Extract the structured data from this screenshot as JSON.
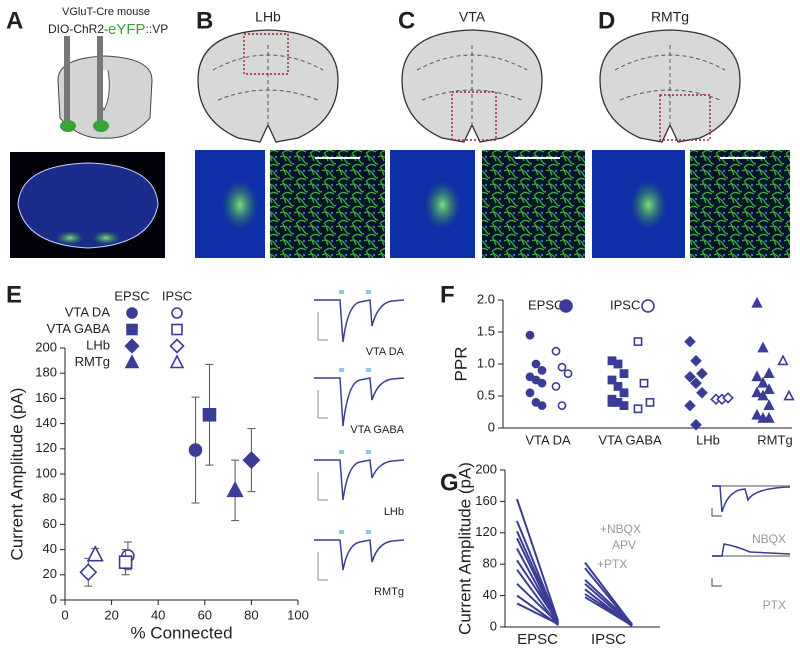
{
  "panel_labels": [
    "A",
    "B",
    "C",
    "D",
    "E",
    "F",
    "G"
  ],
  "panel_a": {
    "mouse": "VGluT-Cre mouse",
    "virus_prefix": "DIO-ChR2-",
    "virus_reporter": "eYFP",
    "virus_suffix": "::VP"
  },
  "atlas_regions": [
    "LHb",
    "VTA",
    "RMTg"
  ],
  "chart_data": [
    {
      "type": "scatter",
      "x_label": "% Connected",
      "y_label": "Current Amplitude (pA)",
      "categories": [
        "VTA DA",
        "VTA GABA",
        "LHb",
        "RMTg"
      ],
      "markers": [
        "circle",
        "square",
        "diamond",
        "triangle"
      ],
      "series": [
        {
          "name": "EPSC",
          "filled": true,
          "color": "#3b3c96",
          "x": [
            56,
            62,
            80,
            73
          ],
          "values": [
            119,
            147,
            111,
            87
          ],
          "errors": [
            42,
            40,
            25,
            24
          ]
        },
        {
          "name": "IPSC",
          "filled": false,
          "color": "#3b3c96",
          "x": [
            27,
            26,
            10,
            13
          ],
          "values": [
            35,
            30,
            22,
            36
          ],
          "errors": [
            11,
            10,
            11,
            5
          ]
        }
      ],
      "xlim": [
        0,
        100
      ],
      "xticks": [
        0,
        20,
        40,
        60,
        80,
        100
      ],
      "ylim": [
        0,
        200
      ],
      "yticks": [
        0,
        20,
        40,
        60,
        80,
        100,
        120,
        140,
        160,
        180,
        200
      ]
    },
    {
      "type": "strip",
      "y_label": "PPR",
      "categories": [
        "VTA DA",
        "VTA GABA",
        "LHb",
        "RMTg"
      ],
      "markers": [
        "circle",
        "square",
        "diamond",
        "triangle"
      ],
      "series": [
        {
          "name": "EPSC",
          "filled": true,
          "color": "#3b3c96",
          "values": [
            [
              1.45,
              1.0,
              0.9,
              0.8,
              0.75,
              0.7,
              0.55,
              0.4,
              0.35
            ],
            [
              1.05,
              1.0,
              0.85,
              0.75,
              0.65,
              0.55,
              0.45,
              0.4,
              0.35,
              0.4
            ],
            [
              1.35,
              1.05,
              0.85,
              0.8,
              0.7,
              0.55,
              0.35,
              0.05
            ],
            [
              1.95,
              1.25,
              0.85,
              0.8,
              0.7,
              0.6,
              0.55,
              0.5,
              0.35,
              0.2,
              0.15,
              0.15
            ]
          ]
        },
        {
          "name": "IPSC",
          "filled": false,
          "color": "#3b3c96",
          "values": [
            [
              1.2,
              0.95,
              0.85,
              0.65,
              0.35
            ],
            [
              1.35,
              0.7,
              0.4,
              0.3
            ],
            [
              0.45,
              0.45,
              0.47
            ],
            [
              1.05,
              0.5
            ]
          ]
        }
      ],
      "ylim": [
        0,
        2
      ],
      "yticks": [
        0,
        0.5,
        {
          "value": 1,
          "label": "1.0"
        },
        1.5,
        {
          "value": 2,
          "label": "2.0"
        }
      ]
    },
    {
      "type": "paired",
      "y_label": "Current Amplitude (pA)",
      "color": "#3b3c96",
      "groups": [
        {
          "name": "EPSC",
          "before": [
            163,
            135,
            122,
            113,
            100,
            85,
            73,
            55,
            40,
            30
          ],
          "after": [
            8,
            6,
            5,
            4,
            3,
            6,
            2,
            5,
            3,
            4
          ],
          "annotation": [
            "+NBQX",
            "APV"
          ]
        },
        {
          "name": "IPSC",
          "before": [
            82,
            75,
            60,
            55,
            48,
            42,
            38
          ],
          "after": [
            3,
            2,
            4,
            2,
            1,
            3,
            2
          ],
          "annotation": [
            "+PTX"
          ]
        }
      ],
      "insets": [
        "NBQX",
        "PTX"
      ],
      "ylim": [
        0,
        200
      ],
      "yticks": [
        0,
        40,
        80,
        120,
        160,
        200
      ]
    }
  ]
}
